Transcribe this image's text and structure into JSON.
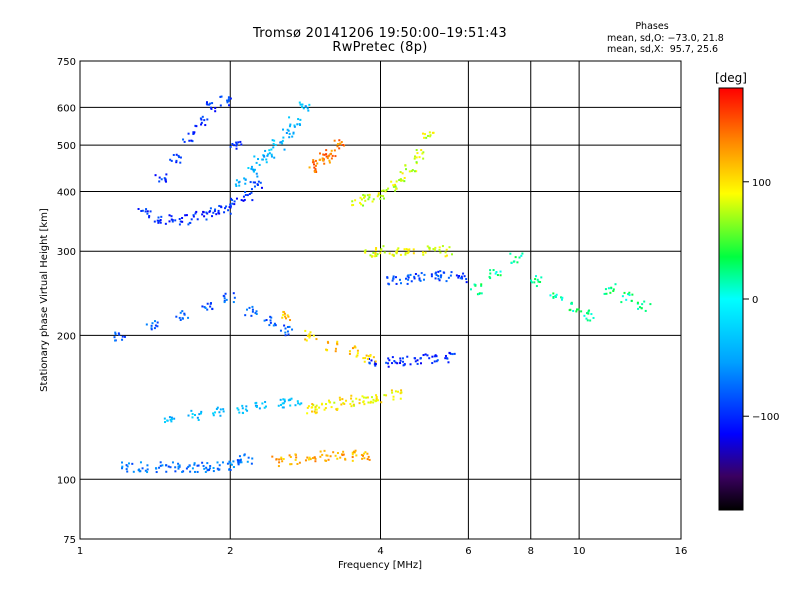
{
  "title_line1": "Tromsø 20141206 19:50:00–19:51:43",
  "title_line2": "RwPretec (8p)",
  "stats": {
    "header": "Phases",
    "line_o": "mean, sd,O: −73.0, 21.8",
    "line_x": "mean, sd,X:  95.7, 25.6"
  },
  "chart_data": {
    "type": "scatter",
    "xlabel": "Frequency [MHz]",
    "ylabel": "Stationary phase Virtual Height [km]",
    "x_scale": "log",
    "y_scale": "log",
    "xlim": [
      1,
      16
    ],
    "ylim": [
      75,
      750
    ],
    "x_ticks": [
      1,
      2,
      4,
      6,
      8,
      10,
      16
    ],
    "x_tick_labels": [
      "1",
      "2",
      "4",
      "6",
      "8",
      "10",
      "16"
    ],
    "y_ticks": [
      75,
      100,
      200,
      300,
      400,
      500,
      600,
      750
    ],
    "y_tick_labels": [
      "75",
      "100",
      "200",
      "300",
      "400",
      "500",
      "600",
      "750"
    ],
    "grid": true,
    "colorbar": {
      "label": "[deg]",
      "range": [
        -180,
        180
      ],
      "ticks": [
        100,
        0,
        -100
      ],
      "tick_labels": [
        "100",
        "0",
        "−100"
      ]
    },
    "traces": [
      {
        "name": "blue-upper-trace",
        "x": [
          1.35,
          1.45,
          1.55,
          1.65,
          1.75,
          1.85,
          1.95,
          2.05,
          2.15,
          2.25
        ],
        "y": [
          360,
          350,
          348,
          350,
          355,
          360,
          368,
          378,
          392,
          410
        ],
        "phase": -100
      },
      {
        "name": "blue-upper-cloud",
        "x": [
          1.45,
          1.55,
          1.65,
          1.75,
          1.85,
          1.95,
          2.05
        ],
        "y": [
          430,
          470,
          520,
          560,
          600,
          620,
          500
        ],
        "phase": -95
      },
      {
        "name": "cyan-upper-trace",
        "x": [
          2.1,
          2.2,
          2.3,
          2.4,
          2.5,
          2.6,
          2.7,
          2.8
        ],
        "y": [
          420,
          440,
          465,
          480,
          500,
          530,
          560,
          600
        ],
        "phase": -40
      },
      {
        "name": "blue-lower-trace",
        "x": [
          1.25,
          1.35,
          1.45,
          1.55,
          1.65,
          1.75,
          1.85,
          1.95,
          2.05,
          2.15
        ],
        "y": [
          106,
          106,
          106,
          106,
          106,
          106,
          106,
          107,
          108,
          110
        ],
        "phase": -70
      },
      {
        "name": "orange-lower-trace",
        "x": [
          2.5,
          2.7,
          2.9,
          3.1,
          3.3,
          3.5,
          3.7
        ],
        "y": [
          109,
          110,
          111,
          112,
          112,
          112,
          112
        ],
        "phase": 120
      },
      {
        "name": "yellow-mid-trace",
        "x": [
          2.9,
          3.0,
          3.2,
          3.4,
          3.6,
          3.8,
          4.0,
          4.3
        ],
        "y": [
          140,
          142,
          143,
          145,
          146,
          147,
          148,
          150
        ],
        "phase": 95
      },
      {
        "name": "cyan-mid-trace",
        "x": [
          1.5,
          1.7,
          1.9,
          2.1,
          2.3,
          2.5,
          2.7
        ],
        "y": [
          135,
          136,
          138,
          140,
          142,
          144,
          146
        ],
        "phase": -40
      },
      {
        "name": "orange-upper-trace",
        "x": [
          2.9,
          3.0,
          3.1,
          3.2,
          3.3
        ],
        "y": [
          450,
          460,
          470,
          480,
          500
        ],
        "phase": 140
      },
      {
        "name": "yellow-upper-trace",
        "x": [
          3.6,
          3.8,
          4.0,
          4.2,
          4.4,
          4.6,
          4.8,
          5.0
        ],
        "y": [
          380,
          385,
          395,
          410,
          430,
          450,
          480,
          520
        ],
        "phase": 80
      },
      {
        "name": "yellow-300-trace",
        "x": [
          3.8,
          4.0,
          4.3,
          4.6,
          5.0,
          5.4
        ],
        "y": [
          298,
          300,
          300,
          302,
          302,
          300
        ],
        "phase": 85
      },
      {
        "name": "blue-280-trace",
        "x": [
          4.2,
          4.5,
          4.8,
          5.1,
          5.4,
          5.8
        ],
        "y": [
          260,
          262,
          264,
          266,
          266,
          265
        ],
        "phase": -90
      },
      {
        "name": "blue-175-trace",
        "x": [
          3.9,
          4.2,
          4.5,
          4.8,
          5.1,
          5.5
        ],
        "y": [
          175,
          176,
          177,
          178,
          179,
          180
        ],
        "phase": -100
      },
      {
        "name": "scatter-high-freq",
        "x": [
          6.2,
          6.8,
          7.5,
          8.2,
          9.0,
          9.8,
          10.5,
          11.5,
          12.5,
          13.5
        ],
        "y": [
          250,
          270,
          290,
          260,
          240,
          230,
          220,
          250,
          240,
          230
        ],
        "phase": 20
      },
      {
        "name": "scatter-low-band",
        "x": [
          1.2,
          1.4,
          1.6,
          1.8,
          2.0,
          2.2,
          2.4,
          2.6
        ],
        "y": [
          200,
          210,
          220,
          230,
          240,
          225,
          215,
          205
        ],
        "phase": -80
      },
      {
        "name": "scatter-mid-band",
        "x": [
          2.6,
          2.9,
          3.2,
          3.5,
          3.8
        ],
        "y": [
          220,
          200,
          190,
          185,
          180
        ],
        "phase": 110
      }
    ]
  }
}
